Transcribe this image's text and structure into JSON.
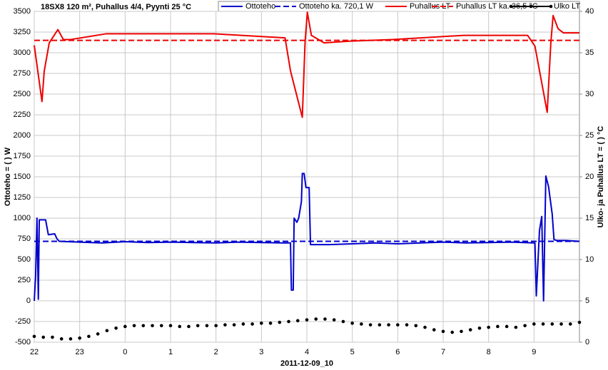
{
  "chart_data": {
    "type": "line",
    "title": "18SX8 120 m², Puhallus 4/4, Pyynti 25 °C",
    "xlabel": "2011-12-09_10",
    "ylabel": "Ottoteho = ( ) W",
    "y2label": "Ulko- ja Puhallus LT = ( ) °C",
    "xlim": [
      0,
      12
    ],
    "xticks": [
      {
        "value": 0,
        "label": "22"
      },
      {
        "value": 1,
        "label": "23"
      },
      {
        "value": 2,
        "label": "0"
      },
      {
        "value": 3,
        "label": "1"
      },
      {
        "value": 4,
        "label": "2"
      },
      {
        "value": 5,
        "label": "3"
      },
      {
        "value": 6,
        "label": "4"
      },
      {
        "value": 7,
        "label": "5"
      },
      {
        "value": 8,
        "label": "6"
      },
      {
        "value": 9,
        "label": "7"
      },
      {
        "value": 10,
        "label": "8"
      },
      {
        "value": 11,
        "label": "9"
      }
    ],
    "ylim": [
      -500,
      3500
    ],
    "yticks": [
      -500,
      -250,
      0,
      250,
      500,
      750,
      1000,
      1250,
      1500,
      1750,
      2000,
      2250,
      2500,
      2750,
      3000,
      3250,
      3500
    ],
    "y2lim": [
      0,
      40
    ],
    "y2ticks": [
      0,
      5,
      10,
      15,
      20,
      25,
      30,
      35,
      40
    ],
    "grid": true,
    "legend": "top-right",
    "series": [
      {
        "name": "Ottoteho",
        "color": "#0000cc",
        "x": [
          0,
          0.03,
          0.06,
          0.09,
          0.11,
          0.25,
          0.31,
          0.45,
          0.5,
          0.55,
          1,
          1.5,
          2,
          2.5,
          3,
          3.5,
          4,
          4.5,
          5,
          5.5,
          5.64,
          5.66,
          5.7,
          5.72,
          5.78,
          5.82,
          5.88,
          5.9,
          5.94,
          5.98,
          6.05,
          6.08,
          6.5,
          7,
          7.5,
          8,
          8.5,
          9,
          9.5,
          10,
          10.5,
          11,
          11.02,
          11.05,
          11.08,
          11.12,
          11.17,
          11.21,
          11.26,
          11.32,
          11.4,
          11.44,
          11.5,
          11.7,
          12
        ],
        "values": [
          0,
          300,
          1000,
          20,
          980,
          980,
          800,
          810,
          750,
          720,
          710,
          700,
          715,
          705,
          710,
          705,
          700,
          710,
          705,
          700,
          700,
          130,
          130,
          1000,
          950,
          1000,
          1200,
          1540,
          1540,
          1370,
          1370,
          680,
          680,
          690,
          700,
          690,
          700,
          710,
          700,
          705,
          710,
          700,
          700,
          60,
          400,
          850,
          1020,
          0,
          1510,
          1380,
          1050,
          740,
          730,
          730,
          720
        ]
      },
      {
        "name": "Ottoteho ka. 720,1 W",
        "color": "#0000cc",
        "dash": true,
        "value": 720.1
      },
      {
        "name": "Puhallus LT",
        "color": "#ee0000",
        "axis": "y2",
        "x": [
          0,
          0.17,
          0.22,
          0.33,
          0.52,
          0.64,
          0.8,
          1.59,
          2.37,
          3.95,
          5.52,
          5.64,
          5.9,
          5.96,
          6.01,
          6.1,
          6.38,
          6.93,
          7.88,
          9.45,
          10.86,
          11.02,
          11.29,
          11.37,
          11.42,
          11.53,
          11.65,
          12
        ],
        "values": [
          35.9,
          29.1,
          32.8,
          36.2,
          37.8,
          36.6,
          36.6,
          37.3,
          37.3,
          37.3,
          36.8,
          32.8,
          27.2,
          36.2,
          39.9,
          37.1,
          36.2,
          36.4,
          36.6,
          37.1,
          37.1,
          35.8,
          27.8,
          36.2,
          39.5,
          37.9,
          37.4,
          37.4
        ]
      },
      {
        "name": "Puhallus LT ka. 36,5 °C",
        "color": "#ee0000",
        "axis": "y2",
        "dash": true,
        "value": 36.5
      },
      {
        "name": "Ulko LT",
        "color": "#000000",
        "axis": "y2",
        "marker": "dot",
        "x": [
          0,
          0.2,
          0.4,
          0.6,
          0.8,
          1,
          1.2,
          1.4,
          1.6,
          1.8,
          2,
          2.2,
          2.4,
          2.6,
          2.8,
          3,
          3.2,
          3.4,
          3.6,
          3.8,
          4,
          4.2,
          4.4,
          4.6,
          4.8,
          5,
          5.2,
          5.4,
          5.6,
          5.8,
          6,
          6.2,
          6.4,
          6.6,
          6.8,
          7,
          7.2,
          7.4,
          7.6,
          7.8,
          8,
          8.2,
          8.4,
          8.6,
          8.8,
          9,
          9.2,
          9.4,
          9.6,
          9.8,
          10,
          10.2,
          10.4,
          10.6,
          10.8,
          11,
          11.2,
          11.4,
          11.6,
          11.8,
          12
        ],
        "values": [
          0.7,
          0.6,
          0.6,
          0.4,
          0.4,
          0.5,
          0.7,
          1.0,
          1.4,
          1.7,
          1.9,
          2.0,
          2.0,
          2.0,
          2.0,
          2.0,
          1.9,
          1.9,
          2.0,
          2.0,
          2.0,
          2.1,
          2.1,
          2.2,
          2.2,
          2.3,
          2.3,
          2.4,
          2.5,
          2.6,
          2.7,
          2.8,
          2.8,
          2.7,
          2.5,
          2.3,
          2.2,
          2.1,
          2.1,
          2.1,
          2.1,
          2.1,
          2.0,
          1.8,
          1.5,
          1.3,
          1.2,
          1.3,
          1.5,
          1.7,
          1.8,
          1.9,
          1.9,
          1.8,
          2.0,
          2.2,
          2.2,
          2.2,
          2.2,
          2.2,
          2.4
        ]
      }
    ]
  }
}
